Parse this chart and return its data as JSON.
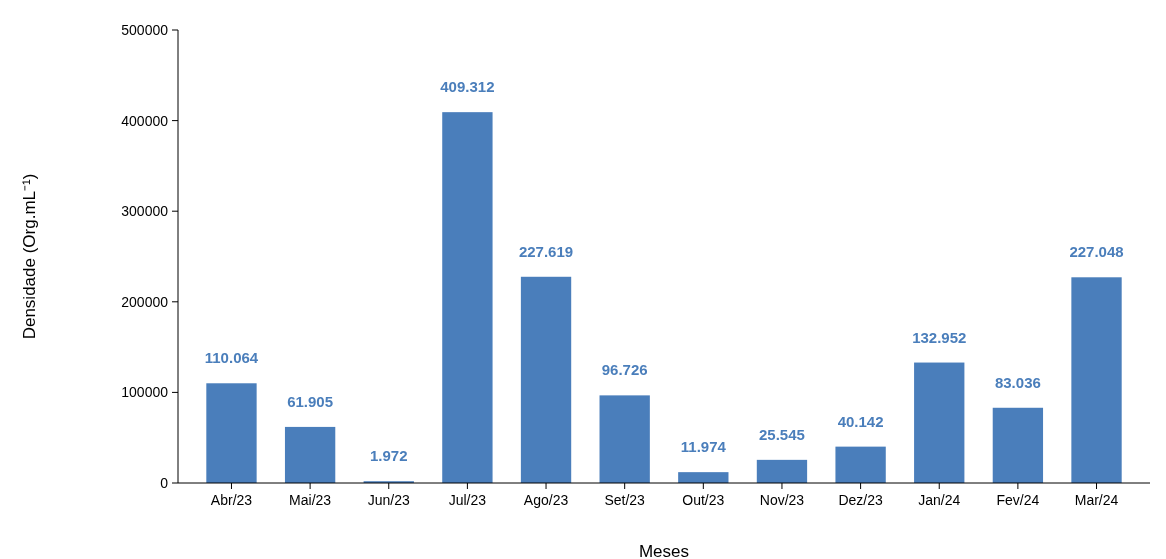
{
  "chart_data": {
    "type": "bar",
    "xlabel": "Meses",
    "ylabel": "Densidade (Org.mL⁻¹)",
    "categories": [
      "Abr/23",
      "Mai/23",
      "Jun/23",
      "Jul/23",
      "Ago/23",
      "Set/23",
      "Out/23",
      "Nov/23",
      "Dez/23",
      "Jan/24",
      "Fev/24",
      "Mar/24"
    ],
    "values": [
      110064,
      61905,
      1972,
      409312,
      227619,
      96726,
      11974,
      25545,
      40142,
      132952,
      83036,
      227048
    ],
    "value_labels": [
      "110.064",
      "61.905",
      "1.972",
      "409.312",
      "227.619",
      "96.726",
      "11.974",
      "25.545",
      "40.142",
      "132.952",
      "83.036",
      "227.048"
    ],
    "color": "#4a7ebb",
    "ylim": [
      0,
      500000
    ],
    "yticks": [
      0,
      100000,
      200000,
      300000,
      400000,
      500000
    ],
    "grid": false
  }
}
